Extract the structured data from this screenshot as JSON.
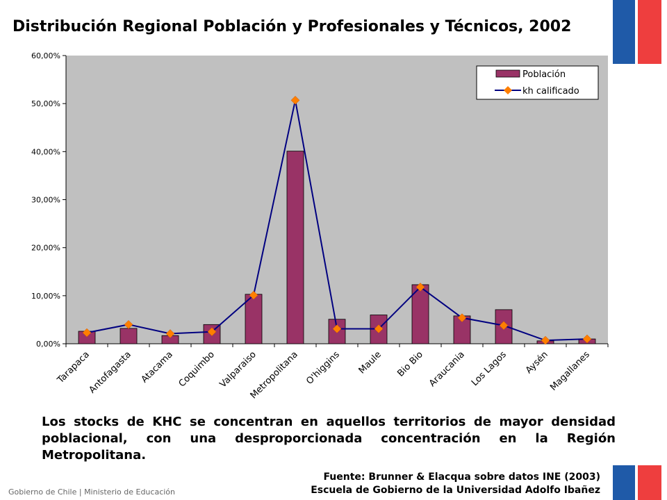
{
  "page": {
    "title": "Distribución Regional Población y Profesionales y Técnicos, 2002",
    "body_text": "Los stocks de KHC se concentran en aquellos territorios de mayor densidad poblacional, con una desproporcionada concentración en la Región Metropolitana.",
    "source_line1": "Fuente: Brunner & Elacqua sobre datos INE (2003)",
    "source_line2": "Escuela de Gobierno de la Universidad Adolfo Ibañez",
    "footer": "Gobierno de Chile | Ministerio de Educación"
  },
  "colors": {
    "bar_fill": "#993366",
    "line_color": "#000080",
    "marker_color": "#ff7f00",
    "plot_bg": "#c0c0c0",
    "flag_blue": "#1f5aa8",
    "flag_red": "#ee3e3e"
  },
  "chart_data": {
    "type": "bar",
    "categories": [
      "Tarapaca",
      "Antofagasta",
      "Atacama",
      "Coquimbo",
      "Valparaiso",
      "Metropolitana",
      "O'higgins",
      "Maule",
      "Bio Bio",
      "Araucania",
      "Los Lagos",
      "Aysén",
      "Magallanes"
    ],
    "series": [
      {
        "name": "Población",
        "type": "bar",
        "values": [
          2.6,
          3.2,
          1.7,
          4.0,
          10.3,
          40.1,
          5.1,
          6.0,
          12.3,
          5.8,
          7.1,
          0.6,
          1.0
        ]
      },
      {
        "name": "kh calificado",
        "type": "line",
        "values": [
          2.3,
          4.0,
          2.1,
          2.5,
          10.1,
          50.7,
          3.1,
          3.1,
          11.8,
          5.4,
          3.8,
          0.7,
          1.0
        ]
      }
    ],
    "yticks": [
      "0,00%",
      "10,00%",
      "20,00%",
      "30,00%",
      "40,00%",
      "50,00%",
      "60,00%"
    ],
    "ylim": [
      0,
      60
    ],
    "grid": false,
    "legend_position": "top-right"
  }
}
